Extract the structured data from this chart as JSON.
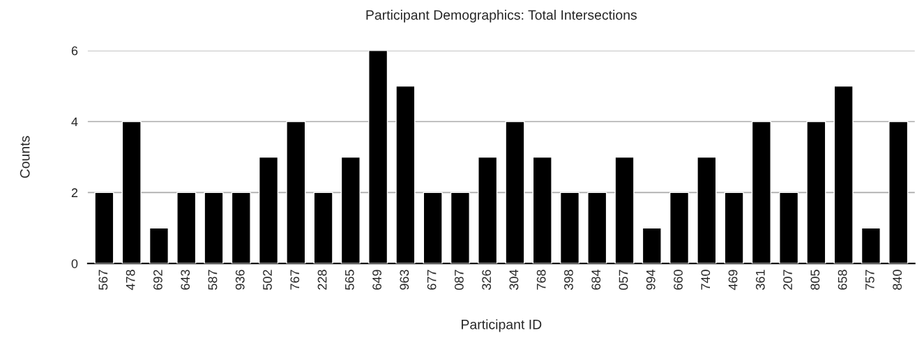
{
  "chart_data": {
    "type": "bar",
    "title": "Participant Demographics: Total Intersections",
    "xlabel": "Participant ID",
    "ylabel": "Counts",
    "categories": [
      "567",
      "478",
      "692",
      "643",
      "587",
      "936",
      "502",
      "767",
      "228",
      "565",
      "649",
      "963",
      "677",
      "087",
      "326",
      "304",
      "768",
      "398",
      "684",
      "057",
      "994",
      "660",
      "740",
      "469",
      "361",
      "207",
      "805",
      "658",
      "757",
      "840"
    ],
    "values": [
      2,
      4,
      1,
      2,
      2,
      2,
      3,
      4,
      2,
      3,
      6,
      5,
      2,
      2,
      3,
      4,
      3,
      2,
      2,
      3,
      1,
      2,
      3,
      2,
      4,
      2,
      4,
      5,
      1,
      4
    ],
    "color": "#000000",
    "ylim": [
      0,
      6
    ],
    "yticks": [
      0,
      2,
      4,
      6
    ],
    "grid": "y",
    "legend": false
  }
}
